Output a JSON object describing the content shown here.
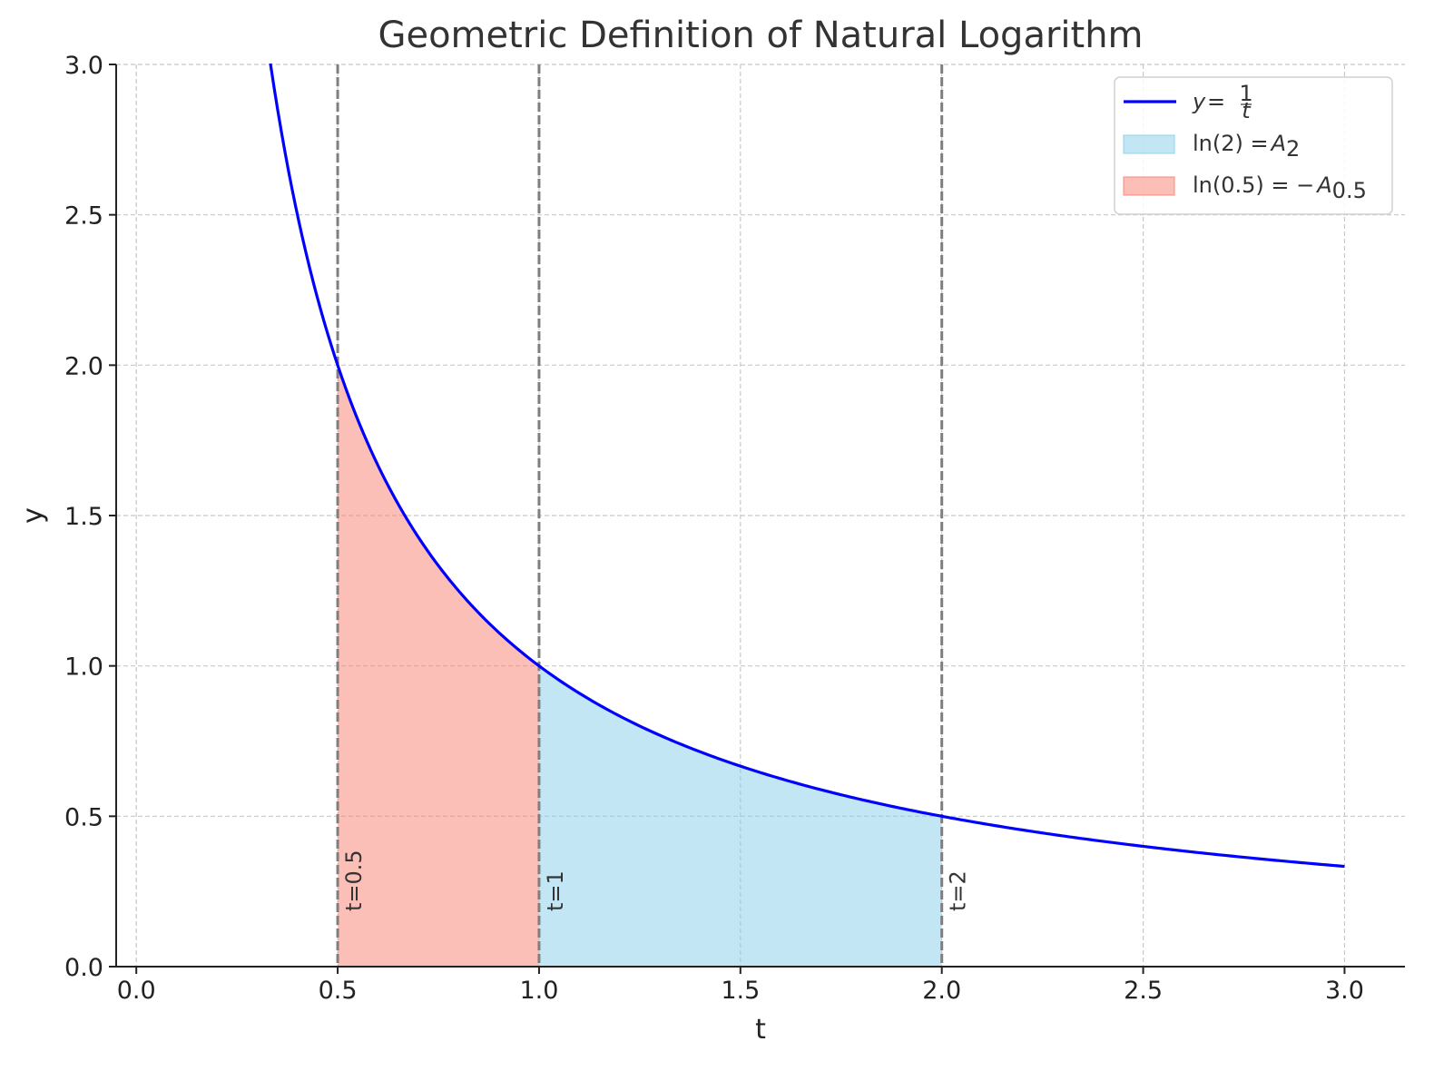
{
  "chart_data": {
    "type": "area",
    "title": "Geometric Definition of Natural Logarithm",
    "xlabel": "t",
    "ylabel": "y",
    "xlim": [
      -0.05,
      3.15
    ],
    "ylim": [
      0,
      3.0
    ],
    "grid": true,
    "legend_position": "top-right",
    "x_ticks": [
      "0.0",
      "0.5",
      "1.0",
      "1.5",
      "2.0",
      "2.5",
      "3.0"
    ],
    "y_ticks": [
      "0.0",
      "0.5",
      "1.0",
      "1.5",
      "2.0",
      "2.5",
      "3.0"
    ],
    "curve": {
      "function": "y = 1/t",
      "t_range": [
        0.333,
        3.0
      ],
      "points": [
        [
          0.333,
          3.0
        ],
        [
          0.35,
          2.857
        ],
        [
          0.4,
          2.5
        ],
        [
          0.45,
          2.222
        ],
        [
          0.5,
          2.0
        ],
        [
          0.6,
          1.667
        ],
        [
          0.7,
          1.429
        ],
        [
          0.8,
          1.25
        ],
        [
          0.9,
          1.111
        ],
        [
          1.0,
          1.0
        ],
        [
          1.2,
          0.833
        ],
        [
          1.4,
          0.714
        ],
        [
          1.5,
          0.667
        ],
        [
          1.6,
          0.625
        ],
        [
          1.8,
          0.556
        ],
        [
          2.0,
          0.5
        ],
        [
          2.2,
          0.455
        ],
        [
          2.5,
          0.4
        ],
        [
          2.8,
          0.357
        ],
        [
          3.0,
          0.333
        ]
      ],
      "color": "#0000ff"
    },
    "shaded_regions": [
      {
        "from": 1.0,
        "to": 2.0,
        "color": "#87ceeb",
        "opacity": 0.5
      },
      {
        "from": 0.5,
        "to": 1.0,
        "color": "#fa8072",
        "opacity": 0.5
      }
    ],
    "vertical_lines": [
      {
        "x": 0.5,
        "label": "t=0.5"
      },
      {
        "x": 1.0,
        "label": "t=1"
      },
      {
        "x": 2.0,
        "label": "t=2"
      }
    ],
    "legend": [
      {
        "kind": "line",
        "color": "#0000ff",
        "text_parts": [
          "y",
          " = ",
          "1",
          "t"
        ]
      },
      {
        "kind": "patch",
        "color": "#87ceeb",
        "text_parts": [
          "ln(2) = ",
          "A",
          "2"
        ]
      },
      {
        "kind": "patch",
        "color": "#fa8072",
        "text_parts": [
          "ln(0.5) = −",
          "A",
          "0.5"
        ]
      }
    ]
  }
}
